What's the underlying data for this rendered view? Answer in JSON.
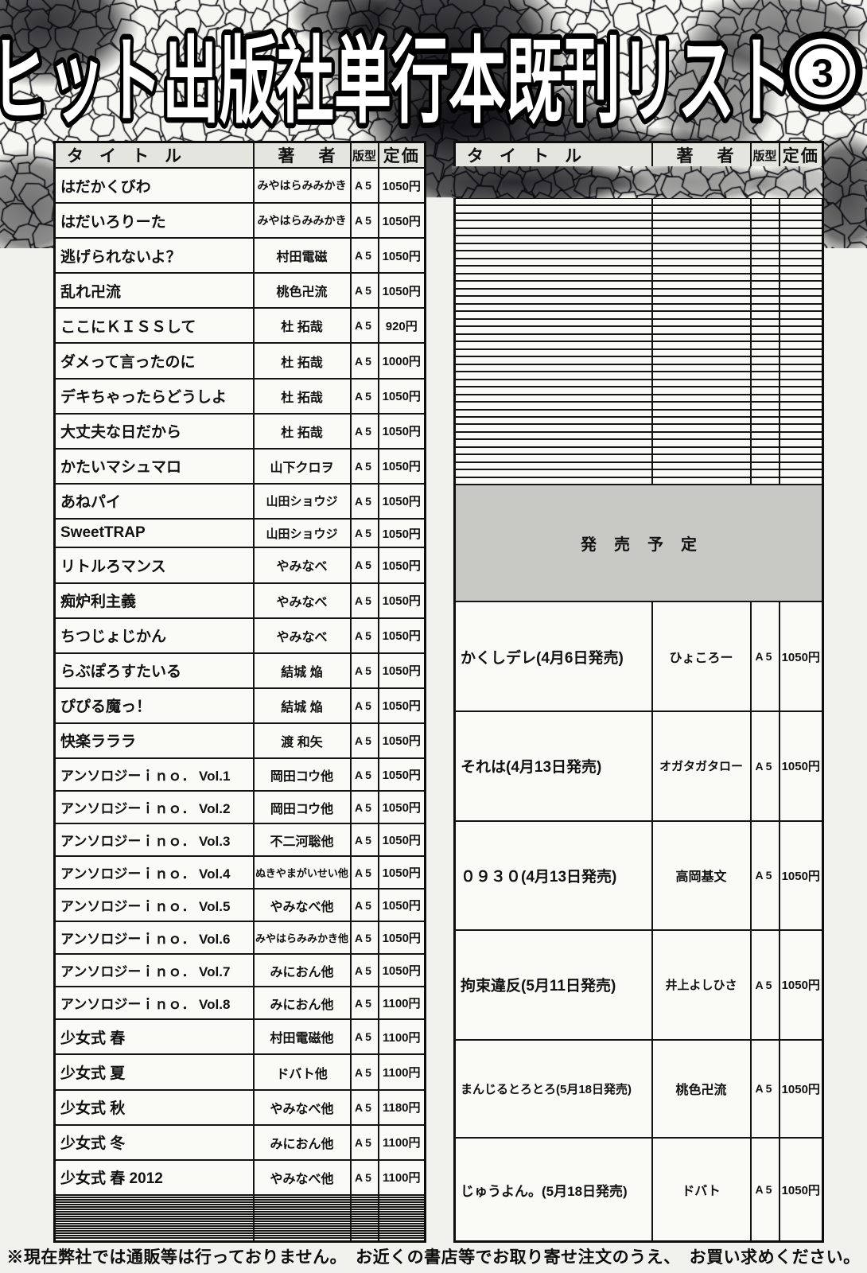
{
  "page": {
    "title": "ヒット出版社単行本既刊リスト",
    "badge": "3",
    "footnote": "※現在弊社では通販等は行っておりません。　お近くの書店等でお取り寄せ注文のうえ、　お買い求めください。"
  },
  "columns": {
    "title": "タイトル",
    "author": "著者",
    "format": "版型",
    "price": "定価"
  },
  "left_table": {
    "rows": [
      {
        "title": "はだかくびわ",
        "author": "みやはらみみかき",
        "format": "A5",
        "price": "1050円"
      },
      {
        "title": "はだいろりーた",
        "author": "みやはらみみかき",
        "format": "A5",
        "price": "1050円"
      },
      {
        "title": "逃げられないよ？",
        "author": "村田電磁",
        "format": "A5",
        "price": "1050円"
      },
      {
        "title": "乱れ卍流",
        "author": "桃色卍流",
        "format": "A5",
        "price": "1050円"
      },
      {
        "title": "ここにＫＩＳＳして",
        "author": "杜 拓哉",
        "format": "A5",
        "price": "920円"
      },
      {
        "title": "ダメって言ったのに",
        "author": "杜 拓哉",
        "format": "A5",
        "price": "1000円"
      },
      {
        "title": "デキちゃったらどうしよ",
        "author": "杜 拓哉",
        "format": "A5",
        "price": "1050円"
      },
      {
        "title": "大丈夫な日だから",
        "author": "杜 拓哉",
        "format": "A5",
        "price": "1050円"
      },
      {
        "title": "かたいマシュマロ",
        "author": "山下クロヲ",
        "format": "A5",
        "price": "1050円"
      },
      {
        "title": "あねパイ",
        "author": "山田ショウジ",
        "format": "A5",
        "price": "1050円"
      },
      {
        "title": "SweetTRAP",
        "author": "山田ショウジ",
        "format": "A5",
        "price": "1050円"
      },
      {
        "title": "リトルろマンス",
        "author": "やみなべ",
        "format": "A5",
        "price": "1050円"
      },
      {
        "title": "痴炉利主義",
        "author": "やみなべ",
        "format": "A5",
        "price": "1050円"
      },
      {
        "title": "ちつじょじかん",
        "author": "やみなべ",
        "format": "A5",
        "price": "1050円"
      },
      {
        "title": "らぶぽろすたいる",
        "author": "結城 焔",
        "format": "A5",
        "price": "1050円"
      },
      {
        "title": "ぴぴる魔っ！",
        "author": "結城 焔",
        "format": "A5",
        "price": "1050円"
      },
      {
        "title": "快楽ラララ",
        "author": "渡 和矢",
        "format": "A5",
        "price": "1050円"
      },
      {
        "title": "アンソロジーｉｎｏ． Vol.1",
        "author": "岡田コウ他",
        "format": "A5",
        "price": "1050円"
      },
      {
        "title": "アンソロジーｉｎｏ． Vol.2",
        "author": "岡田コウ他",
        "format": "A5",
        "price": "1050円"
      },
      {
        "title": "アンソロジーｉｎｏ． Vol.3",
        "author": "不二河聡他",
        "format": "A5",
        "price": "1050円"
      },
      {
        "title": "アンソロジーｉｎｏ． Vol.4",
        "author": "ぬきやまがいせい他",
        "format": "A5",
        "price": "1050円"
      },
      {
        "title": "アンソロジーｉｎｏ． Vol.5",
        "author": "やみなべ他",
        "format": "A5",
        "price": "1050円"
      },
      {
        "title": "アンソロジーｉｎｏ． Vol.6",
        "author": "みやはらみみかき他",
        "format": "A5",
        "price": "1050円"
      },
      {
        "title": "アンソロジーｉｎｏ． Vol.7",
        "author": "みにおん他",
        "format": "A5",
        "price": "1050円"
      },
      {
        "title": "アンソロジーｉｎｏ． Vol.8",
        "author": "みにおん他",
        "format": "A5",
        "price": "1100円"
      },
      {
        "title": "少女式 春",
        "author": "村田電磁他",
        "format": "A5",
        "price": "1100円"
      },
      {
        "title": "少女式 夏",
        "author": "ドバト他",
        "format": "A5",
        "price": "1100円"
      },
      {
        "title": "少女式 秋",
        "author": "やみなべ他",
        "format": "A5",
        "price": "1180円"
      },
      {
        "title": "少女式 冬",
        "author": "みにおん他",
        "format": "A5",
        "price": "1100円"
      },
      {
        "title": "少女式 春 2012",
        "author": "やみなべ他",
        "format": "A5",
        "price": "1100円"
      }
    ],
    "empty_rows": 19
  },
  "right_table": {
    "empty_rows": 42,
    "release_header": "発売予定",
    "release_rows": [
      {
        "title": "かくしデレ(4月6日発売)",
        "author": "ひょころー",
        "format": "A5",
        "price": "1050円"
      },
      {
        "title": "それは(4月13日発売)",
        "author": "オガタガタロー",
        "format": "A5",
        "price": "1050円"
      },
      {
        "title": "０９３０(4月13日発売)",
        "author": "高岡基文",
        "format": "A5",
        "price": "1050円"
      },
      {
        "title": "拘束違反(5月11日発売)",
        "author": "井上よしひさ",
        "format": "A5",
        "price": "1050円"
      },
      {
        "title": "まんじるとろとろ(5月18日発売)",
        "author": "桃色卍流",
        "format": "A5",
        "price": "1050円"
      },
      {
        "title": "じゅうよん。(5月18日発売)",
        "author": "ドバト",
        "format": "A5",
        "price": "1050円"
      }
    ]
  }
}
